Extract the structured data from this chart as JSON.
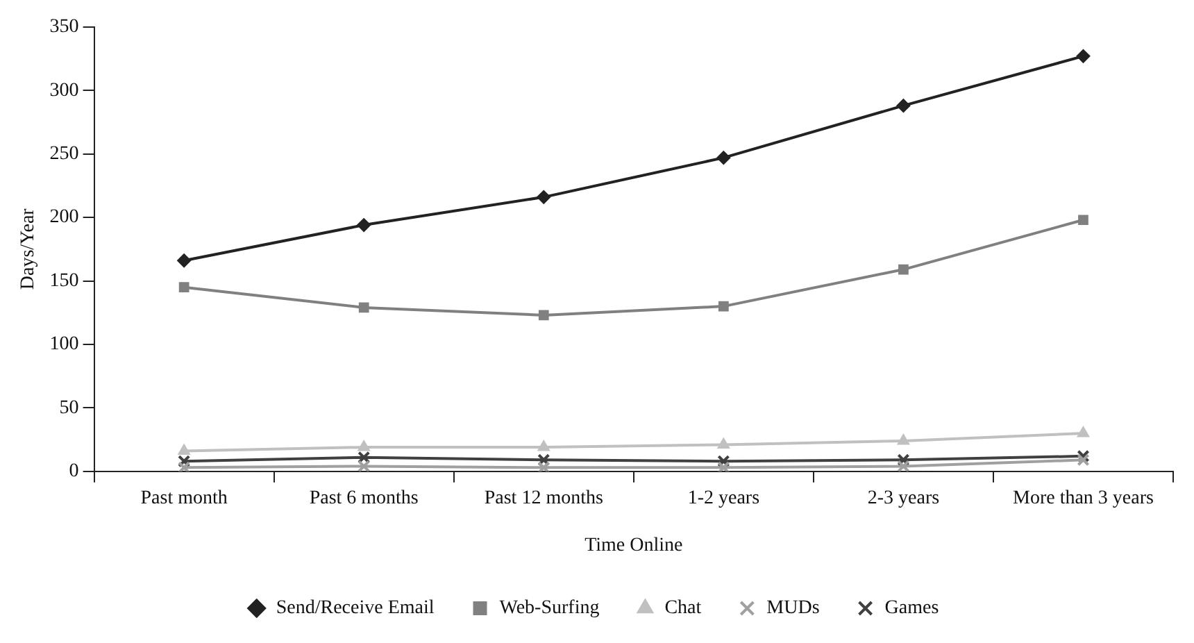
{
  "chart_data": {
    "type": "line",
    "xlabel": "Time Online",
    "ylabel": "Days/Year",
    "categories": [
      "Past month",
      "Past 6 months",
      "Past 12 months",
      "1-2 years",
      "2-3 years",
      "More than 3 years"
    ],
    "series": [
      {
        "name": "Send/Receive Email",
        "color": "#222222",
        "marker": "diamond",
        "values": [
          166,
          194,
          216,
          247,
          288,
          327
        ]
      },
      {
        "name": "Web-Surfing",
        "color": "#808080",
        "marker": "square",
        "values": [
          145,
          129,
          123,
          130,
          159,
          198
        ]
      },
      {
        "name": "Chat",
        "color": "#c0c0c0",
        "marker": "triangle",
        "values": [
          16,
          19,
          19,
          21,
          24,
          30
        ]
      },
      {
        "name": "MUDs",
        "color": "#a0a0a0",
        "marker": "cross",
        "values": [
          3,
          4,
          3,
          3,
          4,
          9
        ]
      },
      {
        "name": "Games",
        "color": "#404040",
        "marker": "cross",
        "values": [
          8,
          11,
          9,
          8,
          9,
          12
        ]
      }
    ],
    "ylim": [
      0,
      350
    ],
    "yticks": [
      0,
      50,
      100,
      150,
      200,
      250,
      300,
      350
    ],
    "grid": false,
    "legend": "bottom",
    "line_style": "solid"
  }
}
